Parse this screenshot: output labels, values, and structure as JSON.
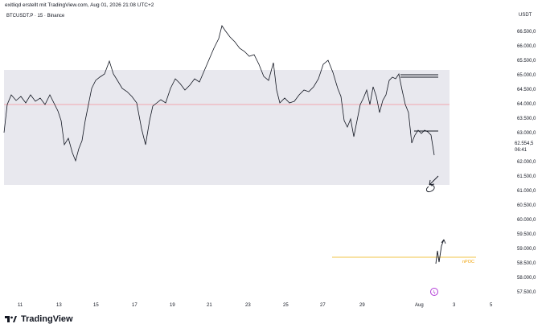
{
  "header": {
    "attribution": "exitliqd erstellt mit TradingView.com, Aug 01, 2026 21:08 UTC+2"
  },
  "symbol": {
    "name": "BTCUSDT.P · 15 · Binance"
  },
  "price_scale": {
    "currency": "USDT",
    "labels": [
      "66.500,0",
      "66.000,0",
      "65.500,0",
      "65.000,0",
      "64.500,0",
      "64.000,0",
      "63.500,0",
      "63.000,0",
      "62.000,0",
      "61.500,0",
      "61.000,0",
      "60.500,0",
      "60.000,0",
      "59.500,0",
      "59.000,0",
      "58.500,0",
      "58.000,0",
      "57.500,0"
    ],
    "values": [
      66500,
      66000,
      65500,
      65000,
      64500,
      64000,
      63500,
      63000,
      62000,
      61500,
      61000,
      60500,
      60000,
      59500,
      59000,
      58500,
      58000,
      57500
    ],
    "current_price": "62.554,5",
    "countdown": "06:41"
  },
  "time_axis": {
    "labels": [
      "11",
      "13",
      "15",
      "17",
      "19",
      "21",
      "23",
      "25",
      "27",
      "29",
      "Aug",
      "3",
      "5"
    ]
  },
  "annotations": {
    "poc_label": "nPOC",
    "zone_color": "#e8e8ee",
    "midline_color": "#f2a6ad",
    "poc_color": "#f0c44a"
  },
  "footer": {
    "brand": "TradingView"
  }
}
